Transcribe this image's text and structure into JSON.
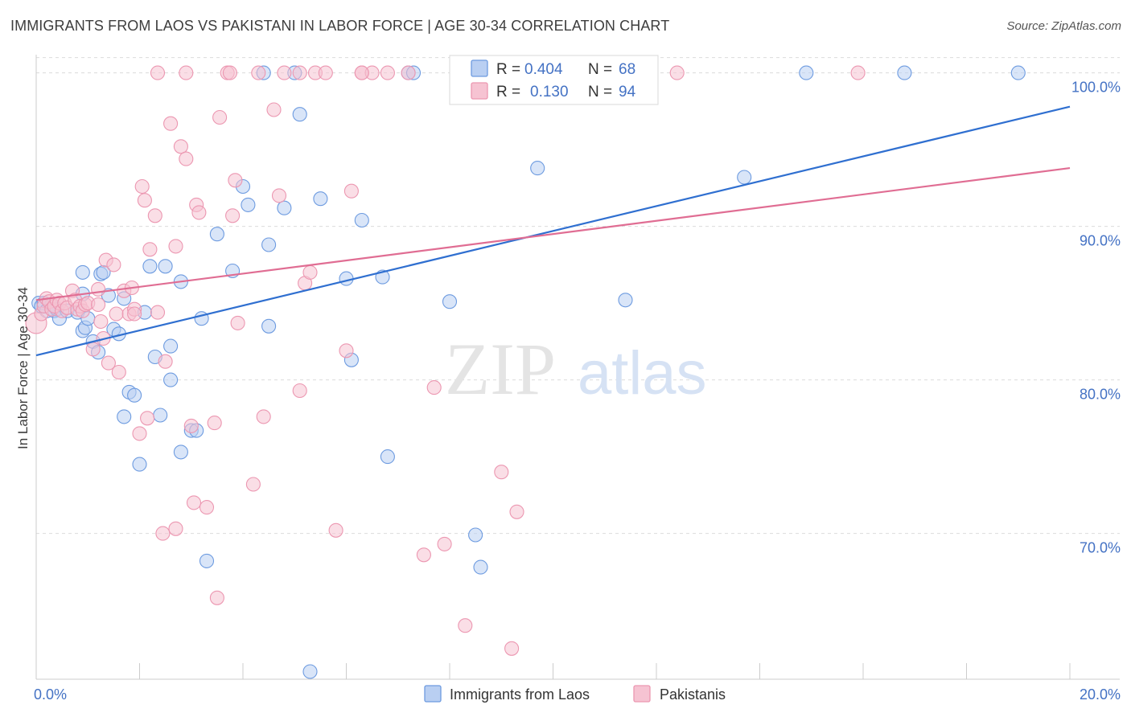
{
  "header": {
    "title": "IMMIGRANTS FROM LAOS VS PAKISTANI IN LABOR FORCE | AGE 30-34 CORRELATION CHART",
    "source": "Source: ZipAtlas.com"
  },
  "watermark": {
    "zip": "ZIP",
    "atlas": "atlas"
  },
  "chart_data": {
    "type": "scatter",
    "title": "IMMIGRANTS FROM LAOS VS PAKISTANI IN LABOR FORCE | AGE 30-34 CORRELATION CHART",
    "xlabel": "",
    "ylabel": "In Labor Force | Age 30-34",
    "xlim": [
      0,
      20
    ],
    "ylim": [
      60.5,
      101.5
    ],
    "x_tick_labels": [
      {
        "value": 0,
        "label": "0.0%"
      },
      {
        "value": 20,
        "label": "20.0%"
      }
    ],
    "y_tick_labels": [
      {
        "value": 70,
        "label": "70.0%"
      },
      {
        "value": 80,
        "label": "80.0%"
      },
      {
        "value": 90,
        "label": "90.0%"
      },
      {
        "value": 100,
        "label": "100.0%"
      }
    ],
    "grid": true,
    "legend_position": "top-center",
    "series": [
      {
        "name": "Immigrants from Laos",
        "color": "#6d9be0",
        "fill": "#b9cff2",
        "line_color": "#2f6fd0",
        "r": "0.404",
        "n": "68",
        "trend": {
          "x0": 0,
          "y0": 81.6,
          "x1": 20,
          "y1": 97.8
        },
        "points": [
          [
            0.05,
            85.0
          ],
          [
            0.1,
            84.8
          ],
          [
            0.15,
            85.0
          ],
          [
            0.2,
            84.5
          ],
          [
            0.3,
            84.9
          ],
          [
            0.35,
            84.5
          ],
          [
            0.4,
            84.6
          ],
          [
            0.45,
            84.0
          ],
          [
            0.6,
            84.5
          ],
          [
            0.8,
            84.4
          ],
          [
            0.9,
            83.2
          ],
          [
            0.95,
            83.4
          ],
          [
            0.9,
            85.6
          ],
          [
            0.9,
            87.0
          ],
          [
            1.0,
            84.0
          ],
          [
            1.1,
            82.5
          ],
          [
            1.2,
            81.8
          ],
          [
            1.25,
            86.9
          ],
          [
            1.3,
            87.0
          ],
          [
            1.4,
            85.5
          ],
          [
            1.5,
            83.3
          ],
          [
            1.6,
            83.0
          ],
          [
            1.7,
            85.3
          ],
          [
            1.8,
            79.2
          ],
          [
            1.9,
            79.0
          ],
          [
            1.7,
            77.6
          ],
          [
            2.0,
            74.5
          ],
          [
            2.1,
            84.4
          ],
          [
            2.2,
            87.4
          ],
          [
            2.3,
            81.5
          ],
          [
            2.4,
            77.7
          ],
          [
            2.5,
            87.4
          ],
          [
            2.6,
            80.0
          ],
          [
            2.6,
            82.2
          ],
          [
            2.8,
            75.3
          ],
          [
            2.8,
            86.4
          ],
          [
            3.0,
            76.7
          ],
          [
            3.1,
            76.7
          ],
          [
            3.2,
            84.0
          ],
          [
            3.3,
            68.2
          ],
          [
            3.5,
            89.5
          ],
          [
            3.8,
            87.1
          ],
          [
            4.0,
            92.6
          ],
          [
            4.1,
            91.4
          ],
          [
            4.4,
            100.0
          ],
          [
            4.5,
            83.5
          ],
          [
            4.5,
            88.8
          ],
          [
            4.8,
            91.2
          ],
          [
            5.0,
            100.0
          ],
          [
            5.1,
            97.3
          ],
          [
            5.3,
            61.0
          ],
          [
            5.5,
            91.8
          ],
          [
            6.0,
            86.6
          ],
          [
            6.1,
            81.3
          ],
          [
            6.3,
            90.4
          ],
          [
            6.7,
            86.7
          ],
          [
            6.8,
            75.0
          ],
          [
            7.2,
            100.0
          ],
          [
            7.3,
            100.0
          ],
          [
            8.0,
            85.1
          ],
          [
            8.5,
            69.9
          ],
          [
            8.6,
            67.8
          ],
          [
            9.7,
            93.8
          ],
          [
            11.4,
            85.2
          ],
          [
            13.7,
            93.2
          ],
          [
            14.9,
            100.0
          ],
          [
            16.8,
            100.0
          ],
          [
            19.0,
            100.0
          ]
        ]
      },
      {
        "name": "Pakistanis",
        "color": "#ec97b1",
        "fill": "#f6c3d2",
        "line_color": "#e06d93",
        "r": "0.130",
        "n": "94",
        "trend": {
          "x0": 0,
          "y0": 85.2,
          "x1": 20,
          "y1": 93.8
        },
        "points": [
          [
            0.0,
            83.7
          ],
          [
            0.1,
            84.3
          ],
          [
            0.15,
            84.8
          ],
          [
            0.2,
            85.3
          ],
          [
            0.25,
            85.1
          ],
          [
            0.3,
            84.6
          ],
          [
            0.35,
            84.8
          ],
          [
            0.4,
            85.2
          ],
          [
            0.45,
            85.0
          ],
          [
            0.5,
            84.5
          ],
          [
            0.55,
            85.0
          ],
          [
            0.6,
            84.7
          ],
          [
            0.7,
            85.8
          ],
          [
            0.75,
            85.2
          ],
          [
            0.8,
            84.6
          ],
          [
            0.85,
            84.8
          ],
          [
            0.9,
            84.5
          ],
          [
            0.95,
            84.9
          ],
          [
            1.0,
            85.0
          ],
          [
            1.1,
            82.0
          ],
          [
            1.2,
            85.9
          ],
          [
            1.25,
            83.8
          ],
          [
            1.3,
            82.7
          ],
          [
            1.35,
            87.8
          ],
          [
            1.4,
            81.1
          ],
          [
            1.5,
            87.5
          ],
          [
            1.55,
            84.3
          ],
          [
            1.6,
            80.5
          ],
          [
            1.7,
            85.8
          ],
          [
            1.8,
            84.3
          ],
          [
            1.85,
            86.0
          ],
          [
            1.9,
            84.6
          ],
          [
            2.0,
            76.5
          ],
          [
            2.05,
            92.6
          ],
          [
            2.1,
            91.7
          ],
          [
            2.15,
            77.5
          ],
          [
            2.2,
            88.5
          ],
          [
            2.3,
            90.7
          ],
          [
            2.35,
            84.4
          ],
          [
            2.45,
            70.0
          ],
          [
            2.5,
            81.2
          ],
          [
            2.6,
            96.7
          ],
          [
            2.7,
            88.7
          ],
          [
            2.7,
            70.3
          ],
          [
            2.8,
            95.2
          ],
          [
            2.9,
            94.4
          ],
          [
            3.0,
            77.0
          ],
          [
            3.05,
            72.0
          ],
          [
            3.1,
            91.4
          ],
          [
            3.15,
            90.9
          ],
          [
            3.3,
            71.7
          ],
          [
            3.45,
            77.2
          ],
          [
            3.5,
            65.8
          ],
          [
            3.55,
            97.1
          ],
          [
            3.7,
            100.0
          ],
          [
            3.75,
            100.0
          ],
          [
            3.8,
            90.7
          ],
          [
            3.85,
            93.0
          ],
          [
            3.9,
            83.7
          ],
          [
            4.2,
            73.2
          ],
          [
            4.4,
            77.6
          ],
          [
            4.6,
            97.6
          ],
          [
            4.7,
            92.0
          ],
          [
            4.8,
            100.0
          ],
          [
            5.1,
            79.3
          ],
          [
            5.2,
            86.3
          ],
          [
            5.3,
            87.0
          ],
          [
            5.4,
            100.0
          ],
          [
            5.6,
            100.0
          ],
          [
            5.8,
            70.2
          ],
          [
            6.0,
            81.9
          ],
          [
            6.1,
            92.3
          ],
          [
            6.3,
            100.0
          ],
          [
            6.5,
            100.0
          ],
          [
            6.8,
            100.0
          ],
          [
            7.2,
            100.0
          ],
          [
            7.5,
            68.6
          ],
          [
            7.7,
            79.5
          ],
          [
            7.9,
            69.3
          ],
          [
            8.3,
            64.0
          ],
          [
            8.5,
            100.0
          ],
          [
            9.0,
            74.0
          ],
          [
            9.2,
            62.5
          ],
          [
            9.3,
            71.4
          ],
          [
            9.6,
            100.0
          ],
          [
            12.4,
            100.0
          ],
          [
            15.9,
            100.0
          ],
          [
            2.35,
            100.0
          ],
          [
            2.9,
            100.0
          ],
          [
            4.3,
            100.0
          ],
          [
            5.1,
            100.0
          ],
          [
            6.3,
            100.0
          ],
          [
            1.9,
            84.3
          ],
          [
            1.2,
            84.9
          ]
        ]
      }
    ]
  },
  "legend_labels": {
    "r_label": "R =",
    "n_label": "N ="
  }
}
